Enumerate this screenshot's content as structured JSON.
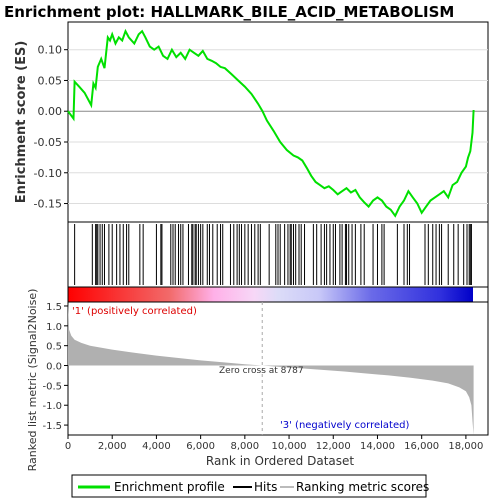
{
  "chart_data": {
    "type": "line",
    "title": "Enrichment plot: HALLMARK_BILE_ACID_METABOLISM",
    "top_panel": {
      "ylabel": "Enrichment score (ES)",
      "ylim": [
        -0.18,
        0.145
      ],
      "yticks": [
        0.1,
        0.05,
        0.0,
        -0.05,
        -0.1,
        -0.15
      ],
      "ytick_labels": [
        "0.10",
        "0.05",
        "0.00",
        "-0.05",
        "-0.10",
        "-0.15"
      ],
      "series": [
        {
          "name": "Enrichment profile",
          "color": "#00ff00",
          "x": [
            0,
            250,
            300,
            500,
            750,
            1050,
            1150,
            1250,
            1350,
            1500,
            1650,
            1800,
            1900,
            2000,
            2150,
            2300,
            2450,
            2600,
            2750,
            3000,
            3200,
            3350,
            3500,
            3700,
            3900,
            4100,
            4300,
            4500,
            4700,
            4900,
            5100,
            5300,
            5500,
            5700,
            5900,
            6100,
            6300,
            6500,
            6700,
            6900,
            7100,
            7400,
            7700,
            8000,
            8300,
            8600,
            8800,
            9000,
            9300,
            9600,
            9900,
            10200,
            10400,
            10600,
            10800,
            11000,
            11200,
            11400,
            11600,
            11800,
            12000,
            12200,
            12400,
            12600,
            12800,
            13000,
            13200,
            13400,
            13600,
            13800,
            14000,
            14200,
            14400,
            14600,
            14800,
            15000,
            15200,
            15400,
            15600,
            15800,
            16000,
            16200,
            16400,
            16600,
            16800,
            17000,
            17200,
            17400,
            17600,
            17800,
            18000,
            18100,
            18200,
            18300,
            18350
          ],
          "y": [
            0.0,
            -0.012,
            0.048,
            0.04,
            0.03,
            0.01,
            0.045,
            0.038,
            0.072,
            0.085,
            0.07,
            0.12,
            0.115,
            0.125,
            0.11,
            0.12,
            0.115,
            0.13,
            0.12,
            0.11,
            0.125,
            0.13,
            0.12,
            0.105,
            0.1,
            0.105,
            0.09,
            0.085,
            0.1,
            0.088,
            0.095,
            0.085,
            0.1,
            0.095,
            0.09,
            0.098,
            0.085,
            0.082,
            0.078,
            0.072,
            0.07,
            0.06,
            0.05,
            0.04,
            0.028,
            0.012,
            0.0,
            -0.015,
            -0.032,
            -0.05,
            -0.063,
            -0.072,
            -0.075,
            -0.08,
            -0.092,
            -0.105,
            -0.115,
            -0.12,
            -0.125,
            -0.122,
            -0.128,
            -0.135,
            -0.13,
            -0.125,
            -0.132,
            -0.128,
            -0.14,
            -0.148,
            -0.155,
            -0.145,
            -0.14,
            -0.145,
            -0.155,
            -0.16,
            -0.17,
            -0.155,
            -0.145,
            -0.13,
            -0.14,
            -0.15,
            -0.165,
            -0.155,
            -0.145,
            -0.14,
            -0.135,
            -0.13,
            -0.14,
            -0.12,
            -0.115,
            -0.1,
            -0.09,
            -0.075,
            -0.065,
            -0.035,
            0.002
          ]
        }
      ]
    },
    "hits_panel": {
      "series_name": "Hits",
      "hit_positions": [
        300,
        1100,
        1250,
        1300,
        1350,
        1450,
        1550,
        1650,
        1850,
        2000,
        2200,
        2350,
        2500,
        2650,
        2750,
        3250,
        3400,
        4000,
        4200,
        4250,
        4650,
        4750,
        4850,
        5000,
        5100,
        5200,
        5450,
        5600,
        5650,
        5750,
        5800,
        5900,
        6000,
        6100,
        6300,
        6400,
        6550,
        6750,
        6900,
        7000,
        7350,
        7500,
        7650,
        7750,
        7850,
        8000,
        8150,
        8300,
        8450,
        8600,
        8700,
        9100,
        9400,
        9500,
        9600,
        9800,
        9950,
        10050,
        10100,
        10200,
        10300,
        10450,
        10550,
        10700,
        11100,
        11250,
        11450,
        11600,
        11700,
        11850,
        12000,
        12100,
        12300,
        12400,
        12550,
        12600,
        12700,
        12850,
        13000,
        13250,
        13400,
        13800,
        14000,
        14200,
        14300,
        14900,
        15200,
        15350,
        15450,
        16150,
        16300,
        16500,
        16650,
        16800,
        16900,
        17200,
        17450,
        17650,
        17900,
        18050,
        18150,
        18200,
        18250
      ]
    },
    "color_bar": {
      "positive_color": "#ff0000",
      "negative_color": "#0000ff",
      "positive_label": "'1' (positively correlated)",
      "negative_label": "'3' (negatively correlated)"
    },
    "bottom_panel": {
      "ylabel": "Ranked list metric (Signal2Noise)",
      "xlabel": "Rank in Ordered Dataset",
      "series_name": "Ranking metric scores",
      "ylim": [
        -1.75,
        1.6
      ],
      "yticks": [
        1.5,
        1.0,
        0.5,
        0.0,
        -0.5,
        -1.0,
        -1.5
      ],
      "ytick_labels": [
        "1.5",
        "1.0",
        "0.5",
        "0.0",
        "-0.5",
        "-1.0",
        "-1.5"
      ],
      "xlim": [
        0,
        19000
      ],
      "xticks": [
        0,
        2000,
        4000,
        6000,
        8000,
        10000,
        12000,
        14000,
        16000,
        18000
      ],
      "xtick_labels": [
        "0",
        "2,000",
        "4,000",
        "6,000",
        "8,000",
        "10,000",
        "12,000",
        "14,000",
        "16,000",
        "18,000"
      ],
      "metric_curve": {
        "x": [
          0,
          50,
          150,
          300,
          600,
          1000,
          2000,
          3000,
          4000,
          5000,
          6000,
          7000,
          8000,
          8787,
          9500,
          10500,
          11500,
          12500,
          13500,
          14500,
          15500,
          16500,
          17200,
          17700,
          18000,
          18150,
          18250,
          18300,
          18350
        ],
        "y": [
          1.6,
          0.9,
          0.75,
          0.65,
          0.57,
          0.5,
          0.4,
          0.32,
          0.25,
          0.19,
          0.13,
          0.08,
          0.03,
          0.0,
          -0.03,
          -0.07,
          -0.11,
          -0.15,
          -0.2,
          -0.25,
          -0.31,
          -0.38,
          -0.45,
          -0.55,
          -0.65,
          -0.8,
          -1.0,
          -1.4,
          -1.75
        ]
      },
      "zero_cross_label": "Zero cross at 8787",
      "zero_cross_rank": 8787
    },
    "legend": {
      "placement": "bottom",
      "entries": [
        "Enrichment profile",
        "Hits",
        "Ranking metric scores"
      ]
    }
  }
}
